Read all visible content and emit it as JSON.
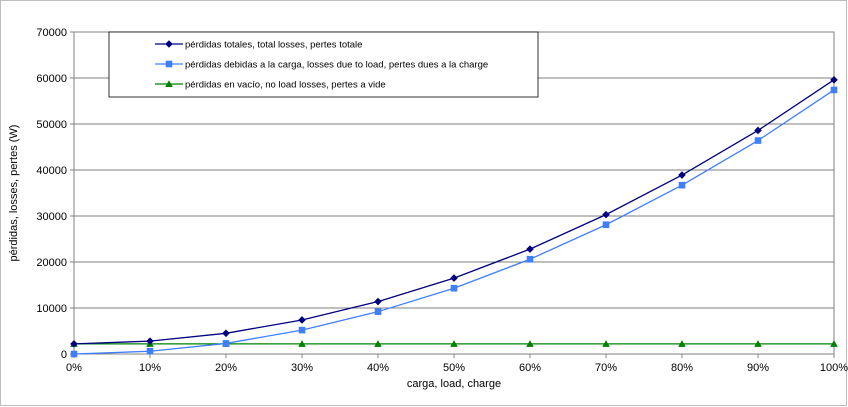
{
  "chart_data": {
    "type": "line",
    "title": "",
    "xlabel": "carga, load, charge",
    "ylabel": "pérdidas, losses, pertes (W)",
    "categories": [
      "0%",
      "10%",
      "20%",
      "30%",
      "40%",
      "50%",
      "60%",
      "70%",
      "80%",
      "90%",
      "100%"
    ],
    "ylim": [
      0,
      70000
    ],
    "yticks": [
      0,
      10000,
      20000,
      30000,
      40000,
      50000,
      60000,
      70000
    ],
    "grid": true,
    "legend_position": "top",
    "series": [
      {
        "name": "pérdidas totales, total losses, pertes totale",
        "color": "#000080",
        "marker": "diamond",
        "values": [
          2200,
          2800,
          4500,
          7400,
          11400,
          16500,
          22800,
          30300,
          38900,
          48600,
          59600
        ]
      },
      {
        "name": "pérdidas debidas a la carga, losses due to load, pertes dues a la charge",
        "color": "#3f7fff",
        "marker": "square",
        "values": [
          0,
          600,
          2300,
          5200,
          9200,
          14300,
          20600,
          28100,
          36700,
          46400,
          57400
        ]
      },
      {
        "name": "pérdidas en vacío, no load losses, pertes a vide",
        "color": "#008000",
        "marker": "triangle",
        "values": [
          2200,
          2200,
          2200,
          2200,
          2200,
          2200,
          2200,
          2200,
          2200,
          2200,
          2200
        ]
      }
    ]
  }
}
